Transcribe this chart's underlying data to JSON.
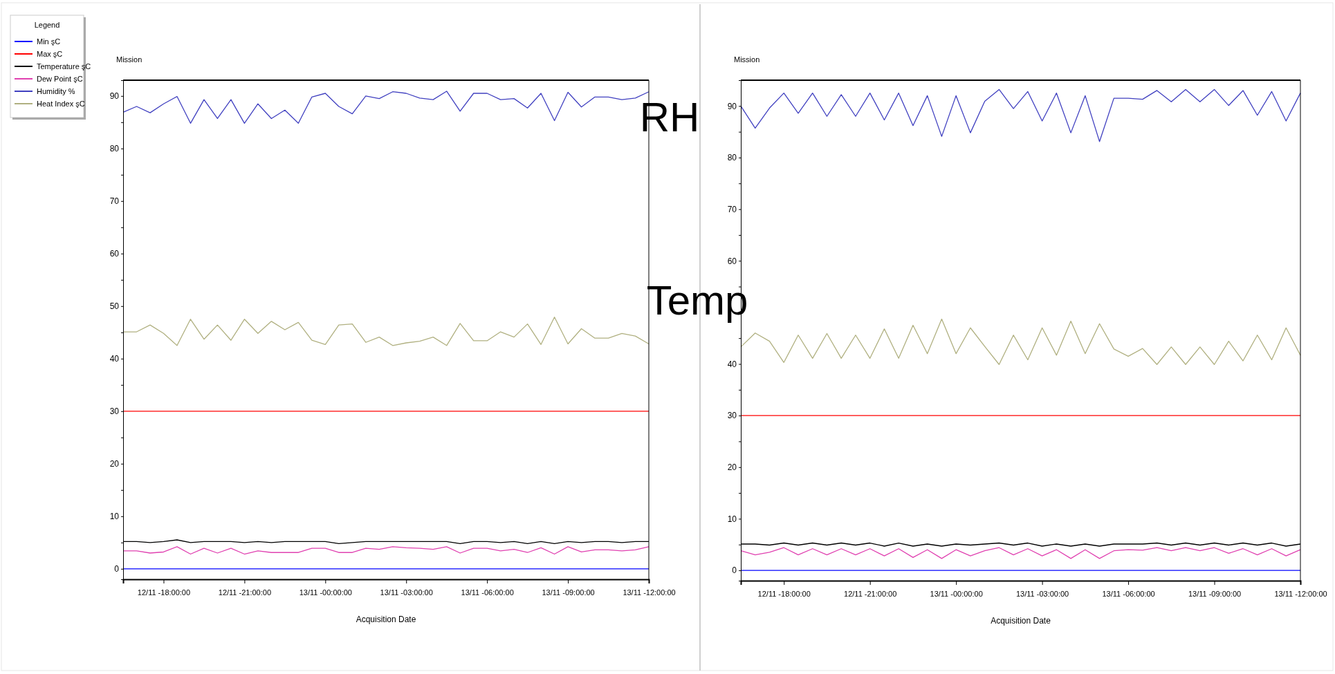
{
  "chart_data": [
    {
      "type": "line",
      "title": "Mission",
      "xlabel": "Acquisition Date",
      "legend_title": "Legend",
      "legend": "left",
      "annotations": [
        "RH",
        "Temp"
      ],
      "categories": [
        null,
        null,
        null,
        "12/11 -18:00:00",
        null,
        null,
        null,
        null,
        null,
        "12/11 -21:00:00",
        null,
        null,
        null,
        null,
        null,
        "13/11 -00:00:00",
        null,
        null,
        null,
        null,
        null,
        "13/11 -03:00:00",
        null,
        null,
        null,
        null,
        null,
        "13/11 -06:00:00",
        null,
        null,
        null,
        null,
        null,
        "13/11 -09:00:00",
        null,
        null,
        null,
        null,
        null,
        "13/11 -12:00:00"
      ],
      "ylim": [
        -2,
        93
      ],
      "yticks": [
        0,
        {
          "value": 5,
          "label": null
        },
        10,
        {
          "value": 15,
          "label": null
        },
        20,
        {
          "value": 25,
          "label": null
        },
        30,
        {
          "value": 35,
          "label": null
        },
        40,
        {
          "value": 45,
          "label": null
        },
        50,
        {
          "value": 55,
          "label": null
        },
        60,
        {
          "value": 65,
          "label": null
        },
        70,
        {
          "value": 75,
          "label": null
        },
        80,
        {
          "value": 85,
          "label": null
        },
        90
      ],
      "series": [
        {
          "name": "Min şC",
          "color": "#0000ff",
          "values": [
            0,
            0,
            0,
            0,
            0,
            0,
            0,
            0,
            0,
            0,
            0,
            0,
            0,
            0,
            0,
            0,
            0,
            0,
            0,
            0,
            0,
            0,
            0,
            0,
            0,
            0,
            0,
            0,
            0,
            0,
            0,
            0,
            0,
            0,
            0,
            0,
            0,
            0,
            0,
            0
          ]
        },
        {
          "name": "Max şC",
          "color": "#ff0000",
          "values": [
            30,
            30,
            30,
            30,
            30,
            30,
            30,
            30,
            30,
            30,
            30,
            30,
            30,
            30,
            30,
            30,
            30,
            30,
            30,
            30,
            30,
            30,
            30,
            30,
            30,
            30,
            30,
            30,
            30,
            30,
            30,
            30,
            30,
            30,
            30,
            30,
            30,
            30,
            30,
            30
          ]
        },
        {
          "name": "Temperature şC",
          "color": "#000000",
          "values": [
            5.2,
            5.2,
            5.0,
            5.2,
            5.5,
            5.0,
            5.2,
            5.2,
            5.2,
            5.0,
            5.2,
            5.0,
            5.2,
            5.2,
            5.2,
            5.2,
            4.8,
            5.0,
            5.2,
            5.2,
            5.2,
            5.2,
            5.2,
            5.2,
            5.2,
            4.8,
            5.2,
            5.2,
            5.0,
            5.2,
            4.8,
            5.2,
            4.8,
            5.2,
            5.0,
            5.2,
            5.2,
            5.0,
            5.2,
            5.2
          ]
        },
        {
          "name": "Dew Point şC",
          "color": "#e040b0",
          "values": [
            3.4,
            3.4,
            3.0,
            3.2,
            4.2,
            2.8,
            3.9,
            3.0,
            3.9,
            2.8,
            3.4,
            3.1,
            3.1,
            3.1,
            3.9,
            3.9,
            3.1,
            3.1,
            3.9,
            3.7,
            4.2,
            4.0,
            3.9,
            3.7,
            4.2,
            3.0,
            3.9,
            3.9,
            3.4,
            3.7,
            3.1,
            4.0,
            2.8,
            4.2,
            3.2,
            3.6,
            3.6,
            3.4,
            3.6,
            4.2
          ]
        },
        {
          "name": "Humidity %",
          "color": "#4040c0",
          "values": [
            86.9,
            88.0,
            86.8,
            88.5,
            89.9,
            84.8,
            89.3,
            85.7,
            89.3,
            84.8,
            88.5,
            85.7,
            87.3,
            84.8,
            89.8,
            90.5,
            88.0,
            86.6,
            90.0,
            89.5,
            90.8,
            90.5,
            89.6,
            89.3,
            90.9,
            87.1,
            90.5,
            90.5,
            89.3,
            89.5,
            87.7,
            90.5,
            85.3,
            90.7,
            87.9,
            89.8,
            89.8,
            89.3,
            89.6,
            90.8
          ]
        },
        {
          "name": "Heat Index şC",
          "color": "#b0b080",
          "values": [
            45.1,
            45.1,
            46.4,
            44.8,
            42.5,
            47.5,
            43.7,
            46.4,
            43.5,
            47.5,
            44.8,
            47.1,
            45.5,
            46.9,
            43.5,
            42.7,
            46.4,
            46.6,
            43.1,
            44.1,
            42.5,
            43.0,
            43.3,
            44.1,
            42.5,
            46.7,
            43.4,
            43.4,
            45.1,
            44.1,
            46.6,
            42.7,
            47.9,
            42.8,
            45.7,
            43.9,
            43.9,
            44.8,
            44.3,
            42.8
          ]
        }
      ]
    },
    {
      "type": "line",
      "title": "Mission",
      "xlabel": "Acquisition Date",
      "categories": [
        null,
        null,
        null,
        "12/11 -18:00:00",
        null,
        null,
        null,
        null,
        null,
        "12/11 -21:00:00",
        null,
        null,
        null,
        null,
        null,
        "13/11 -00:00:00",
        null,
        null,
        null,
        null,
        null,
        "13/11 -03:00:00",
        null,
        null,
        null,
        null,
        null,
        "13/11 -06:00:00",
        null,
        null,
        null,
        null,
        null,
        "13/11 -09:00:00",
        null,
        null,
        null,
        null,
        null,
        "13/11 -12:00:00"
      ],
      "ylim": [
        -2,
        95
      ],
      "yticks": [
        0,
        {
          "value": 5,
          "label": null
        },
        10,
        {
          "value": 15,
          "label": null
        },
        20,
        {
          "value": 25,
          "label": null
        },
        30,
        {
          "value": 35,
          "label": null
        },
        40,
        {
          "value": 45,
          "label": null
        },
        {
          "value": 50,
          "label": null
        },
        {
          "value": 55,
          "label": null
        },
        60,
        {
          "value": 65,
          "label": null
        },
        70,
        {
          "value": 75,
          "label": null
        },
        80,
        {
          "value": 85,
          "label": null
        },
        90
      ],
      "series": [
        {
          "color": "#0000ff",
          "values": [
            0,
            0,
            0,
            0,
            0,
            0,
            0,
            0,
            0,
            0,
            0,
            0,
            0,
            0,
            0,
            0,
            0,
            0,
            0,
            0,
            0,
            0,
            0,
            0,
            0,
            0,
            0,
            0,
            0,
            0,
            0,
            0,
            0,
            0,
            0,
            0,
            0,
            0,
            0,
            0
          ]
        },
        {
          "color": "#ff0000",
          "values": [
            30,
            30,
            30,
            30,
            30,
            30,
            30,
            30,
            30,
            30,
            30,
            30,
            30,
            30,
            30,
            30,
            30,
            30,
            30,
            30,
            30,
            30,
            30,
            30,
            30,
            30,
            30,
            30,
            30,
            30,
            30,
            30,
            30,
            30,
            30,
            30,
            30,
            30,
            30,
            30
          ]
        },
        {
          "color": "#000000",
          "values": [
            5.1,
            5.1,
            4.9,
            5.3,
            4.9,
            5.3,
            4.9,
            5.3,
            4.9,
            5.3,
            4.7,
            5.3,
            4.7,
            5.1,
            4.7,
            5.1,
            4.9,
            5.1,
            5.3,
            4.9,
            5.3,
            4.7,
            5.1,
            4.7,
            5.1,
            4.7,
            5.1,
            5.1,
            5.1,
            5.3,
            4.9,
            5.3,
            4.9,
            5.3,
            4.9,
            5.3,
            4.9,
            5.3,
            4.7,
            5.1
          ]
        },
        {
          "color": "#e040b0",
          "values": [
            3.8,
            3.0,
            3.5,
            4.4,
            3.0,
            4.2,
            3.0,
            4.2,
            3.0,
            4.2,
            2.8,
            4.2,
            2.5,
            4.0,
            2.3,
            4.0,
            2.8,
            3.8,
            4.4,
            3.0,
            4.2,
            2.8,
            4.0,
            2.3,
            4.0,
            2.3,
            3.8,
            4.0,
            3.9,
            4.4,
            3.8,
            4.4,
            3.8,
            4.4,
            3.3,
            4.2,
            3.0,
            4.2,
            2.8,
            4.0
          ]
        },
        {
          "color": "#4040c0",
          "values": [
            90.0,
            85.7,
            89.6,
            92.5,
            88.6,
            92.5,
            88.0,
            92.2,
            88.0,
            92.5,
            87.3,
            92.5,
            86.2,
            92.0,
            84.1,
            92.0,
            84.8,
            90.9,
            93.2,
            89.5,
            92.8,
            87.1,
            92.5,
            84.8,
            92.0,
            83.1,
            91.5,
            91.5,
            91.3,
            93.0,
            90.8,
            93.2,
            90.8,
            93.2,
            90.1,
            93.0,
            88.2,
            92.8,
            87.1,
            92.5
          ]
        },
        {
          "color": "#b0b080",
          "values": [
            43.3,
            46.0,
            44.4,
            40.3,
            45.6,
            41.1,
            45.9,
            41.1,
            45.6,
            41.1,
            46.8,
            41.1,
            47.5,
            42.0,
            48.7,
            42.0,
            47.0,
            43.4,
            39.9,
            45.6,
            40.8,
            47.0,
            41.7,
            48.3,
            42.0,
            47.8,
            42.9,
            41.5,
            43.0,
            39.9,
            43.3,
            39.9,
            43.3,
            39.9,
            44.4,
            40.6,
            45.6,
            40.8,
            47.0,
            41.7
          ]
        }
      ]
    }
  ]
}
